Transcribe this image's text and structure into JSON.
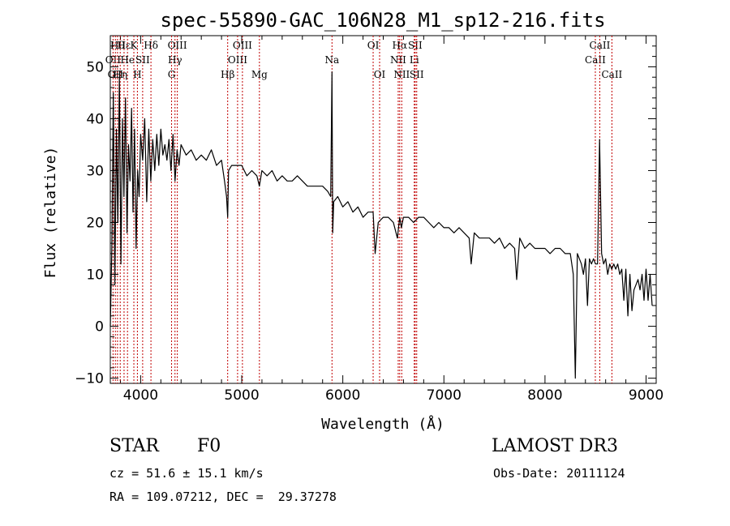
{
  "chart_data": {
    "type": "line",
    "title": "spec-55890-GAC_106N28_M1_sp12-216.fits",
    "xlabel": "Wavelength (Å)",
    "ylabel": "Flux (relative)",
    "xlim": [
      3700,
      9100
    ],
    "ylim": [
      -11,
      56
    ],
    "xticks": [
      4000,
      5000,
      6000,
      7000,
      8000,
      9000
    ],
    "yticks": [
      -10,
      0,
      10,
      20,
      30,
      40,
      50
    ],
    "series": [
      {
        "name": "spectrum",
        "x": [
          3700,
          3715,
          3730,
          3745,
          3760,
          3775,
          3790,
          3805,
          3820,
          3835,
          3850,
          3865,
          3880,
          3895,
          3910,
          3925,
          3940,
          3955,
          3970,
          3985,
          4000,
          4020,
          4040,
          4060,
          4080,
          4100,
          4120,
          4140,
          4160,
          4180,
          4200,
          4220,
          4240,
          4260,
          4280,
          4300,
          4320,
          4340,
          4360,
          4380,
          4400,
          4450,
          4500,
          4550,
          4600,
          4650,
          4700,
          4750,
          4800,
          4830,
          4850,
          4861,
          4870,
          4900,
          4950,
          5000,
          5050,
          5100,
          5150,
          5175,
          5200,
          5250,
          5300,
          5350,
          5400,
          5450,
          5500,
          5550,
          5600,
          5650,
          5700,
          5750,
          5800,
          5850,
          5880,
          5893,
          5900,
          5910,
          5950,
          6000,
          6050,
          6100,
          6150,
          6200,
          6250,
          6300,
          6320,
          6350,
          6400,
          6450,
          6500,
          6540,
          6563,
          6580,
          6600,
          6650,
          6700,
          6750,
          6800,
          6850,
          6900,
          6950,
          7000,
          7050,
          7100,
          7150,
          7200,
          7250,
          7270,
          7300,
          7350,
          7400,
          7450,
          7500,
          7550,
          7600,
          7650,
          7700,
          7720,
          7750,
          7800,
          7850,
          7900,
          7950,
          8000,
          8050,
          8100,
          8150,
          8200,
          8250,
          8280,
          8300,
          8320,
          8340,
          8360,
          8380,
          8400,
          8420,
          8440,
          8460,
          8480,
          8500,
          8520,
          8540,
          8560,
          8580,
          8600,
          8620,
          8640,
          8660,
          8680,
          8700,
          8720,
          8740,
          8760,
          8780,
          8800,
          8820,
          8840,
          8860,
          8880,
          8900,
          8920,
          8940,
          8960,
          8980,
          9000,
          9020,
          9040,
          9060
        ],
        "y": [
          0,
          15,
          45,
          8,
          38,
          20,
          48,
          12,
          40,
          25,
          44,
          18,
          35,
          28,
          42,
          22,
          38,
          15,
          30,
          25,
          37,
          32,
          40,
          24,
          38,
          28,
          36,
          30,
          37,
          31,
          38,
          33,
          35,
          32,
          36,
          30,
          37,
          28,
          34,
          31,
          35,
          33,
          34,
          32,
          33,
          32,
          34,
          31,
          32,
          28,
          25,
          21,
          30,
          31,
          31,
          31,
          29,
          30,
          29,
          27,
          30,
          29,
          30,
          28,
          29,
          28,
          28,
          29,
          28,
          27,
          27,
          27,
          27,
          26,
          25,
          49,
          18,
          24,
          25,
          23,
          24,
          22,
          23,
          21,
          22,
          22,
          14,
          20,
          21,
          21,
          20,
          17,
          21,
          19,
          21,
          21,
          20,
          21,
          21,
          20,
          19,
          20,
          19,
          19,
          18,
          19,
          18,
          17,
          12,
          18,
          17,
          17,
          17,
          16,
          17,
          15,
          16,
          15,
          9,
          17,
          15,
          16,
          15,
          15,
          15,
          14,
          15,
          15,
          14,
          14,
          10,
          -10,
          14,
          13,
          12,
          10,
          13,
          4,
          13,
          12,
          13,
          12,
          12,
          36,
          14,
          12,
          13,
          10,
          12,
          11,
          12,
          11,
          12,
          10,
          11,
          5,
          11,
          2,
          10,
          3,
          7,
          8,
          9,
          7,
          10,
          5,
          11,
          5,
          10,
          4
        ],
        "color": "#000000"
      }
    ],
    "lines": [
      {
        "wavelength": 3727,
        "label": "OII",
        "row": 1
      },
      {
        "wavelength": 3750,
        "label": "OII",
        "row": 2
      },
      {
        "wavelength": 3771,
        "label": "Hθ",
        "row": 0
      },
      {
        "wavelength": 3798,
        "label": "Hη",
        "row": 2
      },
      {
        "wavelength": 3836,
        "label": "Hε",
        "row": 0
      },
      {
        "wavelength": 3870,
        "label": "He",
        "row": 1
      },
      {
        "wavelength": 3933,
        "label": "K",
        "row": 0
      },
      {
        "wavelength": 3968,
        "label": "H",
        "row": 2
      },
      {
        "wavelength": 4020,
        "label": "SII",
        "row": 1
      },
      {
        "wavelength": 4102,
        "label": "Hδ",
        "row": 0
      },
      {
        "wavelength": 4306,
        "label": "G",
        "row": 2
      },
      {
        "wavelength": 4340,
        "label": "Hγ",
        "row": 1
      },
      {
        "wavelength": 4363,
        "label": "OIII",
        "row": 0
      },
      {
        "wavelength": 4861,
        "label": "Hβ",
        "row": 2
      },
      {
        "wavelength": 4959,
        "label": "OIII",
        "row": 1
      },
      {
        "wavelength": 5007,
        "label": "OIII",
        "row": 0
      },
      {
        "wavelength": 5175,
        "label": "Mg",
        "row": 2
      },
      {
        "wavelength": 5893,
        "label": "Na",
        "row": 1
      },
      {
        "wavelength": 6300,
        "label": "OI",
        "row": 0
      },
      {
        "wavelength": 6364,
        "label": "OI",
        "row": 2
      },
      {
        "wavelength": 6548,
        "label": "NII",
        "row": 1
      },
      {
        "wavelength": 6563,
        "label": "Hα",
        "row": 0
      },
      {
        "wavelength": 6583,
        "label": "NII",
        "row": 2
      },
      {
        "wavelength": 6707,
        "label": "Li",
        "row": 1
      },
      {
        "wavelength": 6716,
        "label": "SII",
        "row": 0
      },
      {
        "wavelength": 6731,
        "label": "SII",
        "row": 2
      },
      {
        "wavelength": 8498,
        "label": "CaII",
        "row": 1
      },
      {
        "wavelength": 8542,
        "label": "CaII",
        "row": 0
      },
      {
        "wavelength": 8662,
        "label": "CaII",
        "row": 2
      }
    ],
    "line_color": "#c00000"
  },
  "info": {
    "class": "STAR",
    "subclass": "F0",
    "survey": "LAMOST DR3",
    "cz": "cz = 51.6 ± 15.1 km/s",
    "obs_date": "Obs-Date: 20111124",
    "coords": "RA = 109.07212, DEC =  29.37278"
  }
}
